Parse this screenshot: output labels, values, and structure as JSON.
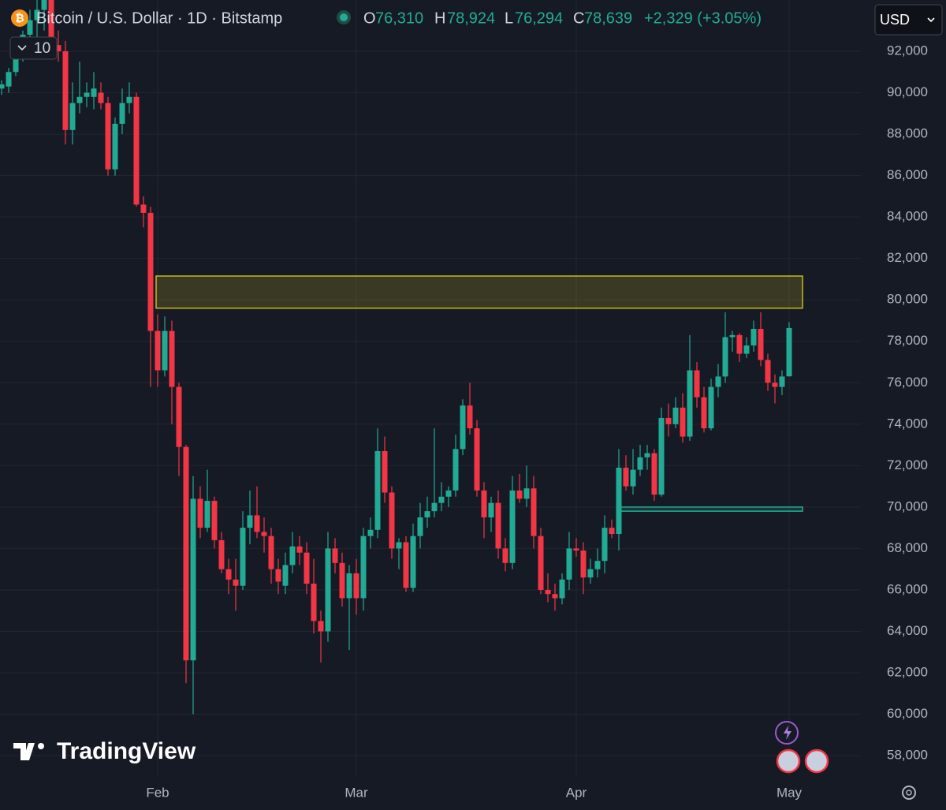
{
  "header": {
    "symbol": "Bitcoin / U.S. Dollar · 1D · Bitstamp",
    "ohlc": [
      {
        "key": "O",
        "value": "76,310"
      },
      {
        "key": "H",
        "value": "78,924"
      },
      {
        "key": "L",
        "value": "76,294"
      },
      {
        "key": "C",
        "value": "78,639"
      }
    ],
    "change": "+2,329 (+3.05%)",
    "currency": "USD",
    "indicators_count": "10",
    "brand": "TradingView"
  },
  "chart_data": {
    "type": "candlestick",
    "categories": [
      null,
      null,
      null,
      null,
      null,
      null,
      null,
      null,
      null,
      null,
      null,
      null,
      null,
      null,
      null,
      null,
      null,
      null,
      null,
      null,
      null,
      null,
      "Feb",
      null,
      null,
      null,
      null,
      null,
      null,
      null,
      null,
      null,
      null,
      null,
      null,
      null,
      null,
      null,
      null,
      null,
      null,
      null,
      null,
      null,
      null,
      null,
      null,
      null,
      null,
      null,
      "Mar",
      null,
      null,
      null,
      null,
      null,
      null,
      null,
      null,
      null,
      null,
      null,
      null,
      null,
      null,
      null,
      null,
      null,
      null,
      null,
      null,
      null,
      null,
      null,
      null,
      null,
      null,
      null,
      null,
      null,
      null,
      "Apr",
      null,
      null,
      null,
      null,
      null,
      null,
      null,
      null,
      null,
      null,
      null,
      null,
      null,
      null,
      null,
      null,
      null,
      null,
      null,
      null,
      null,
      null,
      null,
      null,
      null,
      null,
      null,
      null,
      null,
      "May"
    ],
    "open": [
      90200,
      90300,
      91000,
      92000,
      92800,
      93500,
      94000,
      94500,
      92300,
      92000,
      88200,
      89500,
      89800,
      89800,
      90000,
      89500,
      86300,
      88500,
      89500,
      89800,
      84600,
      84200,
      78500,
      76600,
      78500,
      75800,
      72900,
      62600,
      70400,
      69000,
      70300,
      68400,
      67000,
      66500,
      66200,
      69000,
      69600,
      68800,
      68600,
      67000,
      66200,
      67200,
      68100,
      67800,
      66300,
      64500,
      64000,
      68000,
      67300,
      65600,
      66800,
      65600,
      68600,
      68900,
      72700,
      70700,
      68000,
      68300,
      66100,
      68600,
      69500,
      69800,
      70200,
      70500,
      70800,
      72800,
      74900,
      73800,
      70800,
      69500,
      70200,
      68000,
      67300,
      70800,
      70400,
      70900,
      68600,
      66000,
      65800,
      65600,
      66500,
      68000,
      67900,
      66600,
      67000,
      67400,
      69000,
      68700,
      71900,
      71000,
      71800,
      72400,
      72600,
      70600,
      74300,
      74000,
      74800,
      73400,
      76600,
      75300,
      73800,
      75800,
      76300,
      78200,
      78300,
      77400,
      77800,
      78600,
      77100,
      76000,
      75800,
      76310
    ],
    "high": [
      90600,
      91200,
      92500,
      93000,
      94000,
      95000,
      95000,
      95000,
      93000,
      92500,
      90500,
      91500,
      90500,
      91000,
      90500,
      89800,
      88800,
      90200,
      90500,
      90000,
      85000,
      84500,
      79300,
      79200,
      79000,
      76000,
      73000,
      71500,
      71000,
      71800,
      70500,
      68800,
      67500,
      67500,
      69800,
      70800,
      71000,
      69500,
      69000,
      67500,
      67800,
      68800,
      68600,
      68300,
      67500,
      65000,
      68800,
      68500,
      67800,
      67200,
      67500,
      69000,
      69500,
      73800,
      73400,
      71000,
      68500,
      68600,
      69200,
      70200,
      70500,
      73800,
      71200,
      71000,
      73500,
      75200,
      76000,
      74200,
      71200,
      70500,
      70800,
      68500,
      71500,
      71600,
      72000,
      71500,
      69000,
      66800,
      66300,
      66800,
      68800,
      68500,
      68300,
      67500,
      68000,
      69600,
      69400,
      72800,
      72500,
      72800,
      73000,
      73000,
      72800,
      74800,
      75000,
      75300,
      75500,
      78300,
      77000,
      75800,
      76200,
      76900,
      79400,
      78500,
      78400,
      78200,
      79000,
      79400,
      77400,
      76400,
      76600,
      78924
    ],
    "low": [
      89900,
      90000,
      90800,
      91500,
      92000,
      92500,
      93000,
      92000,
      91500,
      87500,
      87500,
      89000,
      89300,
      89200,
      89200,
      86000,
      86000,
      88000,
      89000,
      84500,
      83500,
      75800,
      75800,
      76300,
      74000,
      71500,
      61500,
      60000,
      68500,
      68800,
      68000,
      66800,
      65800,
      65000,
      66000,
      68200,
      68500,
      67800,
      66300,
      65800,
      65800,
      66800,
      67200,
      65800,
      63900,
      62500,
      63500,
      66800,
      65200,
      63100,
      64800,
      65000,
      68000,
      68500,
      70200,
      67500,
      67000,
      65900,
      65900,
      68000,
      69000,
      69500,
      69800,
      70000,
      70500,
      72500,
      73500,
      70500,
      68500,
      68800,
      67500,
      66900,
      67000,
      70200,
      70000,
      68000,
      65800,
      65400,
      65000,
      65300,
      66000,
      67600,
      65800,
      66300,
      66600,
      66800,
      68500,
      67900,
      70800,
      70600,
      71500,
      71800,
      70300,
      70500,
      73400,
      73800,
      73100,
      73200,
      74800,
      73600,
      73700,
      75300,
      76000,
      77500,
      77000,
      77200,
      77500,
      76800,
      75600,
      75000,
      75400,
      76294
    ],
    "close": [
      90400,
      91000,
      92000,
      92800,
      93500,
      94000,
      94500,
      92300,
      92000,
      88200,
      89500,
      89800,
      90000,
      90200,
      89500,
      86300,
      88500,
      89500,
      89800,
      84600,
      84200,
      78500,
      76600,
      78500,
      75800,
      72900,
      62600,
      70400,
      69000,
      70300,
      68400,
      67000,
      66500,
      66200,
      69000,
      69600,
      68800,
      68600,
      67000,
      66400,
      67200,
      68100,
      67800,
      66300,
      64500,
      64000,
      68000,
      67300,
      65600,
      66800,
      65600,
      68600,
      68900,
      72700,
      70700,
      68000,
      68300,
      66100,
      68600,
      69500,
      69800,
      70200,
      70500,
      70800,
      72800,
      74900,
      73800,
      70800,
      69500,
      70200,
      68000,
      67300,
      70800,
      70400,
      70900,
      68600,
      66000,
      65800,
      65600,
      66500,
      68000,
      67900,
      66600,
      67000,
      67400,
      69000,
      68700,
      71900,
      71000,
      71800,
      72400,
      72600,
      70600,
      74300,
      74000,
      74800,
      73400,
      76600,
      75300,
      73800,
      75800,
      76300,
      78200,
      78300,
      77400,
      77800,
      78600,
      77100,
      76000,
      75800,
      76300,
      78639
    ],
    "up_color": "#22ab94",
    "down_color": "#f23645",
    "ylim": [
      56975,
      94475
    ],
    "yticks": [
      {
        "value": 58000,
        "label": "58,000"
      },
      {
        "value": 60000,
        "label": "60,000"
      },
      {
        "value": 62000,
        "label": "62,000"
      },
      {
        "value": 64000,
        "label": "64,000"
      },
      {
        "value": 66000,
        "label": "66,000"
      },
      {
        "value": 68000,
        "label": "68,000"
      },
      {
        "value": 70000,
        "label": "70,000"
      },
      {
        "value": 72000,
        "label": "72,000"
      },
      {
        "value": 74000,
        "label": "74,000"
      },
      {
        "value": 76000,
        "label": "76,000"
      },
      {
        "value": 78000,
        "label": "78,000"
      },
      {
        "value": 80000,
        "label": "80,000"
      },
      {
        "value": 82000,
        "label": "82,000"
      },
      {
        "value": 84000,
        "label": "84,000"
      },
      {
        "value": 86000,
        "label": "86,000"
      },
      {
        "value": 88000,
        "label": "88,000"
      },
      {
        "value": 90000,
        "label": "90,000"
      },
      {
        "value": 92000,
        "label": "92,000"
      }
    ],
    "grid": true,
    "zones": [
      {
        "low": 79600,
        "high": 81150,
        "color": "#c9b824"
      },
      {
        "low": 69800,
        "high": 70000,
        "color": "#22ab94"
      }
    ]
  }
}
